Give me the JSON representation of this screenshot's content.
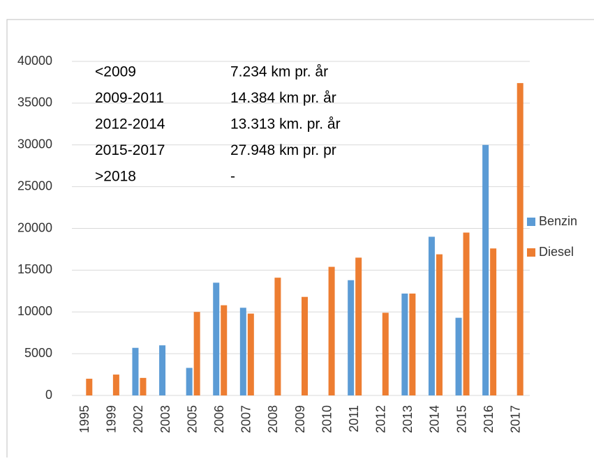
{
  "chart_data": {
    "type": "bar",
    "categories": [
      "1995",
      "1999",
      "2002",
      "2003",
      "2005",
      "2006",
      "2007",
      "2008",
      "2009",
      "2010",
      "2011",
      "2012",
      "2013",
      "2014",
      "2015",
      "2016",
      "2017"
    ],
    "series": [
      {
        "name": "Benzin",
        "color": "#5b9bd5",
        "values": [
          null,
          null,
          5700,
          6000,
          3300,
          13500,
          10500,
          null,
          null,
          null,
          13800,
          null,
          12200,
          19000,
          9300,
          30000,
          null
        ]
      },
      {
        "name": "Diesel",
        "color": "#ed7d31",
        "values": [
          2000,
          2500,
          2100,
          null,
          10000,
          10800,
          9800,
          14100,
          11800,
          15400,
          16500,
          9900,
          12200,
          16900,
          19500,
          17600,
          37400
        ]
      }
    ],
    "ylim": [
      0,
      40000
    ],
    "yticks": [
      0,
      5000,
      10000,
      15000,
      20000,
      25000,
      30000,
      35000,
      40000
    ],
    "grid": true,
    "legend": "right",
    "annotations": [
      [
        "<2009",
        "7.234 km pr. år"
      ],
      [
        "2009-2011",
        "14.384 km pr. år"
      ],
      [
        "2012-2014",
        "13.313 km. pr. år"
      ],
      [
        "2015-2017",
        "27.948 km pr. pr"
      ],
      [
        ">2018",
        "-"
      ]
    ]
  }
}
